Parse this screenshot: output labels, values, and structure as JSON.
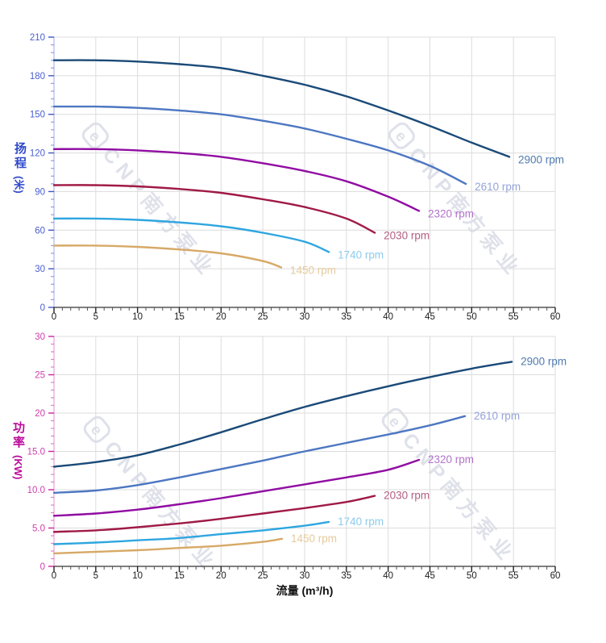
{
  "page": {
    "background": "#ffffff"
  },
  "watermark": {
    "logo_char": "e",
    "text": "CNP南方泵业",
    "color": "#ccd0de"
  },
  "chart_data": [
    {
      "type": "line",
      "title": "",
      "ylabel": "扬程",
      "ylabel_unit": "(米)",
      "xlabel": "",
      "xlim": [
        0,
        60
      ],
      "ylim": [
        0,
        210
      ],
      "x_major_step": 5,
      "x_minor_step": 1,
      "y_major_step": 30,
      "y_minor_step": 6,
      "grid": true,
      "legend_position": "curve-end-labels",
      "x_tick_labels": [
        "0",
        "5",
        "10",
        "15",
        "20",
        "25",
        "30",
        "35",
        "40",
        "45",
        "50",
        "55",
        "60"
      ],
      "y_tick_labels": [
        "0",
        "30",
        "60",
        "90",
        "120",
        "150",
        "180",
        "210"
      ],
      "axis_color": "#3f56c8",
      "tick_label_color": "#4a5fd0",
      "title_color": "#2f49cc",
      "series": [
        {
          "name": "2900 rpm",
          "color": "#1a4a78",
          "label_color": "#4f7bb0",
          "points": [
            [
              0,
              192
            ],
            [
              5,
              192
            ],
            [
              10,
              191
            ],
            [
              15,
              189
            ],
            [
              20,
              186
            ],
            [
              25,
              180
            ],
            [
              30,
              173
            ],
            [
              35,
              164
            ],
            [
              40,
              153
            ],
            [
              45,
              141
            ],
            [
              50,
              128
            ],
            [
              54.5,
              117
            ]
          ]
        },
        {
          "name": "2610 rpm",
          "color": "#4d77c2",
          "label_color": "#94a3d8",
          "points": [
            [
              0,
              156
            ],
            [
              5,
              156
            ],
            [
              10,
              155
            ],
            [
              15,
              153
            ],
            [
              20,
              150
            ],
            [
              25,
              145
            ],
            [
              30,
              139
            ],
            [
              35,
              131
            ],
            [
              40,
              122
            ],
            [
              45,
              110
            ],
            [
              49.3,
              96
            ]
          ]
        },
        {
          "name": "2320 rpm",
          "color": "#900ca2",
          "label_color": "#b273cb",
          "points": [
            [
              0,
              123
            ],
            [
              5,
              123
            ],
            [
              10,
              122
            ],
            [
              15,
              120
            ],
            [
              20,
              117
            ],
            [
              25,
              112
            ],
            [
              30,
              106
            ],
            [
              35,
              98
            ],
            [
              40,
              86
            ],
            [
              43.7,
              75
            ]
          ]
        },
        {
          "name": "2030 rpm",
          "color": "#a01a45",
          "label_color": "#b25f80",
          "points": [
            [
              0,
              95
            ],
            [
              5,
              95
            ],
            [
              10,
              94
            ],
            [
              15,
              92
            ],
            [
              20,
              89
            ],
            [
              25,
              84
            ],
            [
              30,
              78
            ],
            [
              35,
              69
            ],
            [
              38.4,
              58
            ]
          ]
        },
        {
          "name": "1740 rpm",
          "color": "#2ea6e0",
          "label_color": "#8ccbee",
          "points": [
            [
              0,
              69
            ],
            [
              5,
              69
            ],
            [
              10,
              68
            ],
            [
              15,
              66
            ],
            [
              20,
              63
            ],
            [
              25,
              58
            ],
            [
              30,
              51
            ],
            [
              32.9,
              43
            ]
          ]
        },
        {
          "name": "1450 rpm",
          "color": "#d7a967",
          "label_color": "#e6ca9b",
          "points": [
            [
              0,
              48
            ],
            [
              5,
              48
            ],
            [
              10,
              47
            ],
            [
              15,
              45
            ],
            [
              20,
              42
            ],
            [
              25,
              36
            ],
            [
              27.2,
              31
            ]
          ]
        }
      ]
    },
    {
      "type": "line",
      "title": "",
      "ylabel": "功率",
      "ylabel_unit": "(KW)",
      "xlabel": "流量 (m³/h)",
      "xlabel_color": "#111111",
      "xlim": [
        0,
        60
      ],
      "ylim": [
        0,
        30
      ],
      "x_major_step": 5,
      "x_minor_step": 1,
      "y_major_step": 5,
      "y_minor_step": 1,
      "grid": true,
      "legend_position": "curve-end-labels",
      "x_tick_labels": [
        "0",
        "5",
        "10",
        "15",
        "20",
        "25",
        "30",
        "35",
        "40",
        "45",
        "50",
        "55",
        "60"
      ],
      "y_tick_labels": [
        "0",
        "5.0",
        "10.0",
        "15.0",
        "20",
        "25",
        "30"
      ],
      "axis_color": "#cc22a0",
      "tick_label_color": "#ce3fae",
      "title_color": "#bb0b9b",
      "series": [
        {
          "name": "2900 rpm",
          "color": "#1a4a78",
          "label_color": "#4f7bb0",
          "points": [
            [
              0,
              13
            ],
            [
              5,
              13.6
            ],
            [
              10,
              14.5
            ],
            [
              15,
              15.9
            ],
            [
              20,
              17.5
            ],
            [
              25,
              19.2
            ],
            [
              30,
              20.8
            ],
            [
              35,
              22.2
            ],
            [
              40,
              23.5
            ],
            [
              45,
              24.7
            ],
            [
              50,
              25.8
            ],
            [
              54.8,
              26.7
            ]
          ]
        },
        {
          "name": "2610 rpm",
          "color": "#4d77c2",
          "label_color": "#94a3d8",
          "points": [
            [
              0,
              9.6
            ],
            [
              5,
              9.9
            ],
            [
              10,
              10.6
            ],
            [
              15,
              11.6
            ],
            [
              20,
              12.7
            ],
            [
              25,
              13.8
            ],
            [
              30,
              15.0
            ],
            [
              35,
              16.1
            ],
            [
              40,
              17.2
            ],
            [
              45,
              18.4
            ],
            [
              49.2,
              19.6
            ]
          ]
        },
        {
          "name": "2320 rpm",
          "color": "#900ca2",
          "label_color": "#b273cb",
          "points": [
            [
              0,
              6.6
            ],
            [
              5,
              6.9
            ],
            [
              10,
              7.4
            ],
            [
              15,
              8.1
            ],
            [
              20,
              8.9
            ],
            [
              25,
              9.8
            ],
            [
              30,
              10.7
            ],
            [
              35,
              11.6
            ],
            [
              40,
              12.6
            ],
            [
              43.7,
              13.9
            ]
          ]
        },
        {
          "name": "2030 rpm",
          "color": "#a01a45",
          "label_color": "#b25f80",
          "points": [
            [
              0,
              4.5
            ],
            [
              5,
              4.7
            ],
            [
              10,
              5.1
            ],
            [
              15,
              5.6
            ],
            [
              20,
              6.2
            ],
            [
              25,
              6.9
            ],
            [
              30,
              7.6
            ],
            [
              35,
              8.4
            ],
            [
              38.4,
              9.2
            ]
          ]
        },
        {
          "name": "1740 rpm",
          "color": "#2ea6e0",
          "label_color": "#8ccbee",
          "points": [
            [
              0,
              2.9
            ],
            [
              5,
              3.1
            ],
            [
              10,
              3.4
            ],
            [
              15,
              3.7
            ],
            [
              20,
              4.2
            ],
            [
              25,
              4.7
            ],
            [
              30,
              5.3
            ],
            [
              32.9,
              5.8
            ]
          ]
        },
        {
          "name": "1450 rpm",
          "color": "#d7a967",
          "label_color": "#e6ca9b",
          "points": [
            [
              0,
              1.7
            ],
            [
              5,
              1.9
            ],
            [
              10,
              2.1
            ],
            [
              15,
              2.4
            ],
            [
              20,
              2.7
            ],
            [
              25,
              3.2
            ],
            [
              27.3,
              3.6
            ]
          ]
        }
      ]
    }
  ]
}
